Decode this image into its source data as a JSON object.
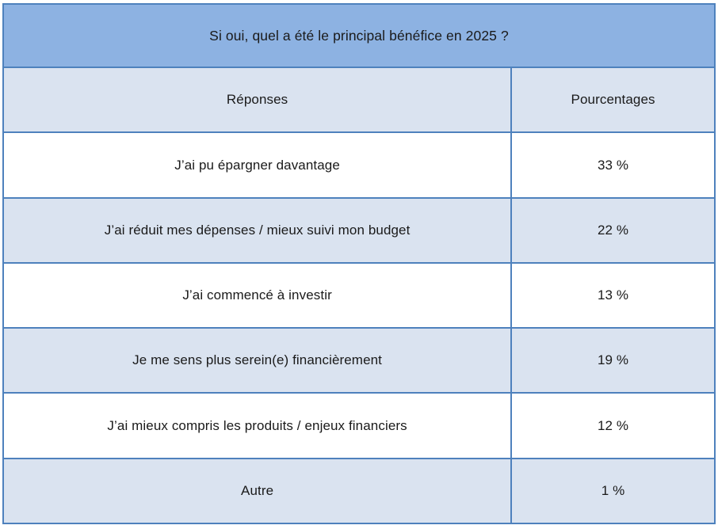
{
  "table": {
    "title": "Si oui, quel a été le principal bénéfice en 2025 ?",
    "columns": {
      "responses": "Réponses",
      "percentages": "Pourcentages"
    },
    "rows": [
      {
        "label": "J’ai pu épargner davantage",
        "value": "33 %"
      },
      {
        "label": "J’ai réduit mes dépenses / mieux suivi mon budget",
        "value": "22 %"
      },
      {
        "label": "J’ai commencé à investir",
        "value": "13 %"
      },
      {
        "label": "Je me sens plus serein(e) financièrement",
        "value": "19 %"
      },
      {
        "label": "J’ai mieux compris les produits / enjeux financiers",
        "value": "12 %"
      },
      {
        "label": "Autre",
        "value": "1 %"
      }
    ],
    "colors": {
      "title_bg": "#8DB2E2",
      "alt_row_bg": "#DAE3F0",
      "row_bg": "#FFFFFF",
      "border": "#4E81BD",
      "text": "#1A1A1A"
    }
  },
  "chart_data": {
    "type": "table",
    "title": "Si oui, quel a été le principal bénéfice en 2025 ?",
    "columns": [
      "Réponses",
      "Pourcentages"
    ],
    "categories": [
      "J’ai pu épargner davantage",
      "J’ai réduit mes dépenses / mieux suivi mon budget",
      "J’ai commencé à investir",
      "Je me sens plus serein(e) financièrement",
      "J’ai mieux compris les produits / enjeux financiers",
      "Autre"
    ],
    "values": [
      33,
      22,
      13,
      19,
      12,
      1
    ],
    "unit": "%"
  }
}
